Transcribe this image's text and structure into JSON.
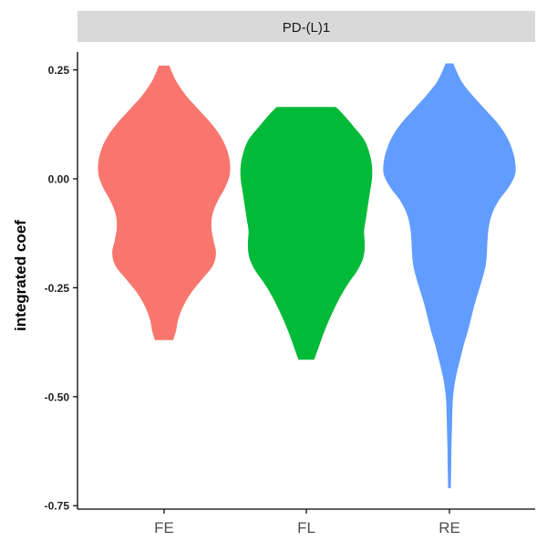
{
  "chart_data": {
    "type": "violin",
    "facet_label": "PD-(L)1",
    "xlabel": "",
    "ylabel": "integrated coef",
    "ylim": [
      -0.75,
      0.27
    ],
    "yticks": [
      0.25,
      0.0,
      -0.25,
      -0.5,
      -0.75
    ],
    "ytick_labels": [
      "0.25",
      "0.00",
      "-0.25",
      "-0.50",
      "-0.75"
    ],
    "grid": false,
    "legend": "none",
    "categories": [
      "FE",
      "FL",
      "RE"
    ],
    "series": [
      {
        "category": "FE",
        "color": "#F8766D",
        "min": -0.37,
        "max": 0.26,
        "density_profile": [
          [
            0.26,
            0.08
          ],
          [
            0.245,
            0.12
          ],
          [
            0.22,
            0.2
          ],
          [
            0.19,
            0.34
          ],
          [
            0.16,
            0.52
          ],
          [
            0.13,
            0.7
          ],
          [
            0.1,
            0.85
          ],
          [
            0.07,
            0.95
          ],
          [
            0.04,
            1.0
          ],
          [
            0.01,
            1.0
          ],
          [
            -0.02,
            0.93
          ],
          [
            -0.05,
            0.82
          ],
          [
            -0.08,
            0.74
          ],
          [
            -0.11,
            0.72
          ],
          [
            -0.14,
            0.75
          ],
          [
            -0.17,
            0.79
          ],
          [
            -0.2,
            0.74
          ],
          [
            -0.23,
            0.58
          ],
          [
            -0.26,
            0.42
          ],
          [
            -0.29,
            0.3
          ],
          [
            -0.32,
            0.22
          ],
          [
            -0.35,
            0.18
          ],
          [
            -0.37,
            0.14
          ]
        ]
      },
      {
        "category": "FL",
        "color": "#00BA38",
        "min": -0.415,
        "max": 0.165,
        "density_profile": [
          [
            0.165,
            0.45
          ],
          [
            0.15,
            0.55
          ],
          [
            0.12,
            0.72
          ],
          [
            0.09,
            0.88
          ],
          [
            0.06,
            0.96
          ],
          [
            0.03,
            1.0
          ],
          [
            0.0,
            1.0
          ],
          [
            -0.03,
            0.97
          ],
          [
            -0.06,
            0.94
          ],
          [
            -0.09,
            0.91
          ],
          [
            -0.12,
            0.88
          ],
          [
            -0.15,
            0.89
          ],
          [
            -0.18,
            0.87
          ],
          [
            -0.21,
            0.78
          ],
          [
            -0.24,
            0.64
          ],
          [
            -0.27,
            0.52
          ],
          [
            -0.3,
            0.42
          ],
          [
            -0.33,
            0.33
          ],
          [
            -0.36,
            0.25
          ],
          [
            -0.39,
            0.18
          ],
          [
            -0.415,
            0.12
          ]
        ]
      },
      {
        "category": "RE",
        "color": "#619CFF",
        "min": -0.71,
        "max": 0.265,
        "density_profile": [
          [
            0.265,
            0.06
          ],
          [
            0.25,
            0.1
          ],
          [
            0.22,
            0.2
          ],
          [
            0.19,
            0.36
          ],
          [
            0.16,
            0.54
          ],
          [
            0.13,
            0.72
          ],
          [
            0.1,
            0.86
          ],
          [
            0.07,
            0.95
          ],
          [
            0.04,
            1.0
          ],
          [
            0.01,
            1.0
          ],
          [
            -0.02,
            0.9
          ],
          [
            -0.05,
            0.75
          ],
          [
            -0.08,
            0.65
          ],
          [
            -0.11,
            0.6
          ],
          [
            -0.14,
            0.58
          ],
          [
            -0.17,
            0.57
          ],
          [
            -0.2,
            0.55
          ],
          [
            -0.23,
            0.5
          ],
          [
            -0.26,
            0.44
          ],
          [
            -0.29,
            0.38
          ],
          [
            -0.32,
            0.33
          ],
          [
            -0.35,
            0.28
          ],
          [
            -0.38,
            0.22
          ],
          [
            -0.41,
            0.17
          ],
          [
            -0.44,
            0.12
          ],
          [
            -0.47,
            0.08
          ],
          [
            -0.5,
            0.055
          ],
          [
            -0.53,
            0.045
          ],
          [
            -0.56,
            0.04
          ],
          [
            -0.59,
            0.035
          ],
          [
            -0.62,
            0.03
          ],
          [
            -0.65,
            0.028
          ],
          [
            -0.68,
            0.025
          ],
          [
            -0.71,
            0.02
          ]
        ]
      }
    ]
  }
}
